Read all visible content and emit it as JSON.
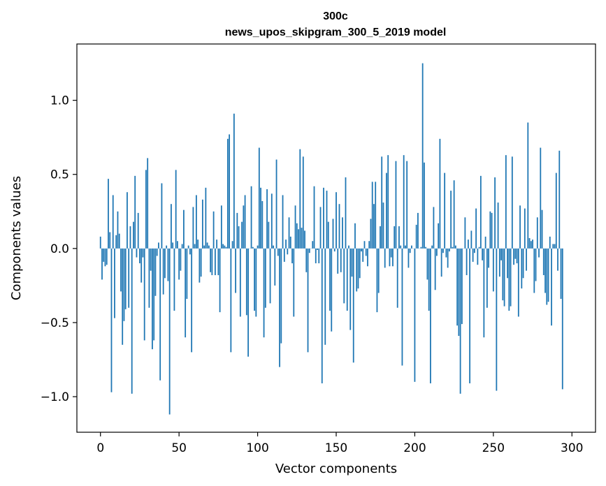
{
  "chart_data": {
    "type": "bar",
    "title": "300c",
    "subtitle": "news_upos_skipgram_300_5_2019 model",
    "xlabel": "Vector components",
    "ylabel": "Components values",
    "xlim": [
      -15,
      315
    ],
    "ylim": [
      -1.24,
      1.38
    ],
    "xticks": [
      0,
      50,
      100,
      150,
      200,
      250,
      300
    ],
    "xtick_labels": [
      "0",
      "50",
      "100",
      "150",
      "200",
      "250",
      "300"
    ],
    "yticks": [
      -1.0,
      -0.5,
      0.0,
      0.5,
      1.0
    ],
    "ytick_labels": [
      "−1.0",
      "−0.5",
      "0.0",
      "0.5",
      "1.0"
    ],
    "bar_color": "#1f77b4",
    "grid": false,
    "values": [
      0.08,
      -0.21,
      -0.09,
      -0.12,
      -0.11,
      0.47,
      0.11,
      -0.97,
      0.36,
      -0.47,
      0.09,
      0.25,
      0.1,
      -0.29,
      -0.65,
      -0.49,
      -0.41,
      0.38,
      -0.4,
      0.15,
      -0.98,
      0.18,
      0.49,
      -0.06,
      0.24,
      -0.1,
      -0.23,
      -0.06,
      -0.62,
      0.53,
      0.61,
      -0.4,
      -0.15,
      -0.68,
      -0.62,
      -0.32,
      -0.05,
      0.04,
      -0.89,
      0.44,
      -0.31,
      -0.2,
      0.02,
      -0.22,
      -1.12,
      0.3,
      0.04,
      -0.42,
      0.53,
      0.05,
      -0.21,
      -0.15,
      0.03,
      0.26,
      -0.6,
      -0.34,
      0.02,
      -0.04,
      -0.7,
      0.28,
      0.03,
      0.36,
      0.06,
      -0.23,
      -0.19,
      0.33,
      0.02,
      0.41,
      0.04,
      0.02,
      -0.16,
      -0.18,
      0.25,
      -0.18,
      0.06,
      -0.18,
      -0.43,
      0.29,
      0.03,
      0.02,
      0.01,
      0.74,
      0.77,
      -0.7,
      0.05,
      0.91,
      -0.3,
      0.24,
      0.15,
      -0.46,
      0.18,
      0.29,
      0.36,
      -0.45,
      -0.73,
      0.0,
      0.42,
      0.01,
      -0.42,
      -0.46,
      0.02,
      0.68,
      0.41,
      0.32,
      -0.6,
      -0.4,
      0.4,
      0.18,
      -0.37,
      0.37,
      0.02,
      -0.25,
      0.6,
      -0.05,
      -0.8,
      -0.64,
      0.36,
      -0.09,
      0.06,
      -0.04,
      0.21,
      0.08,
      -0.1,
      -0.46,
      0.29,
      0.17,
      0.13,
      0.67,
      0.14,
      0.62,
      0.12,
      -0.16,
      -0.7,
      -0.03,
      0.0,
      0.05,
      0.42,
      -0.1,
      -0.01,
      -0.1,
      0.28,
      -0.91,
      0.41,
      -0.65,
      0.39,
      0.18,
      -0.42,
      -0.56,
      0.2,
      -0.02,
      0.38,
      -0.17,
      0.3,
      -0.16,
      0.21,
      -0.37,
      0.48,
      -0.42,
      0.02,
      -0.55,
      -0.19,
      -0.77,
      0.17,
      -0.29,
      -0.27,
      -0.2,
      -0.02,
      -0.09,
      0.05,
      -0.05,
      -0.12,
      0.05,
      0.2,
      0.45,
      0.3,
      0.45,
      -0.43,
      -0.3,
      0.15,
      0.62,
      0.31,
      -0.13,
      0.51,
      0.63,
      -0.12,
      -0.06,
      -0.12,
      0.15,
      0.59,
      -0.4,
      0.15,
      0.02,
      -0.79,
      0.63,
      0.02,
      0.59,
      -0.13,
      -0.03,
      0.02,
      0.0,
      -0.9,
      0.16,
      0.24,
      0.0,
      0.01,
      1.25,
      0.58,
      0.01,
      -0.21,
      -0.42,
      -0.91,
      0.02,
      0.28,
      -0.28,
      -0.05,
      0.17,
      0.74,
      -0.19,
      -0.03,
      0.51,
      -0.06,
      -0.13,
      -0.02,
      0.39,
      0.01,
      0.46,
      0.02,
      -0.52,
      -0.59,
      -0.98,
      -0.51,
      0.0,
      0.21,
      -0.18,
      0.06,
      -0.91,
      0.12,
      -0.09,
      -0.03,
      0.27,
      -0.11,
      0.01,
      0.49,
      -0.08,
      -0.6,
      0.08,
      -0.4,
      -0.13,
      0.25,
      0.24,
      -0.29,
      0.48,
      -0.96,
      0.31,
      -0.19,
      -0.08,
      -0.35,
      -0.39,
      0.63,
      -0.2,
      -0.42,
      -0.39,
      0.62,
      -0.11,
      -0.07,
      -0.1,
      -0.46,
      0.29,
      -0.27,
      -0.2,
      0.27,
      -0.15,
      0.85,
      0.07,
      0.05,
      0.06,
      -0.3,
      -0.22,
      0.21,
      -0.06,
      0.68,
      0.26,
      -0.18,
      -0.3,
      -0.38,
      -0.36,
      0.08,
      -0.52,
      0.03,
      0.03,
      0.51,
      -0.15,
      0.66,
      -0.34,
      -0.95
    ]
  }
}
